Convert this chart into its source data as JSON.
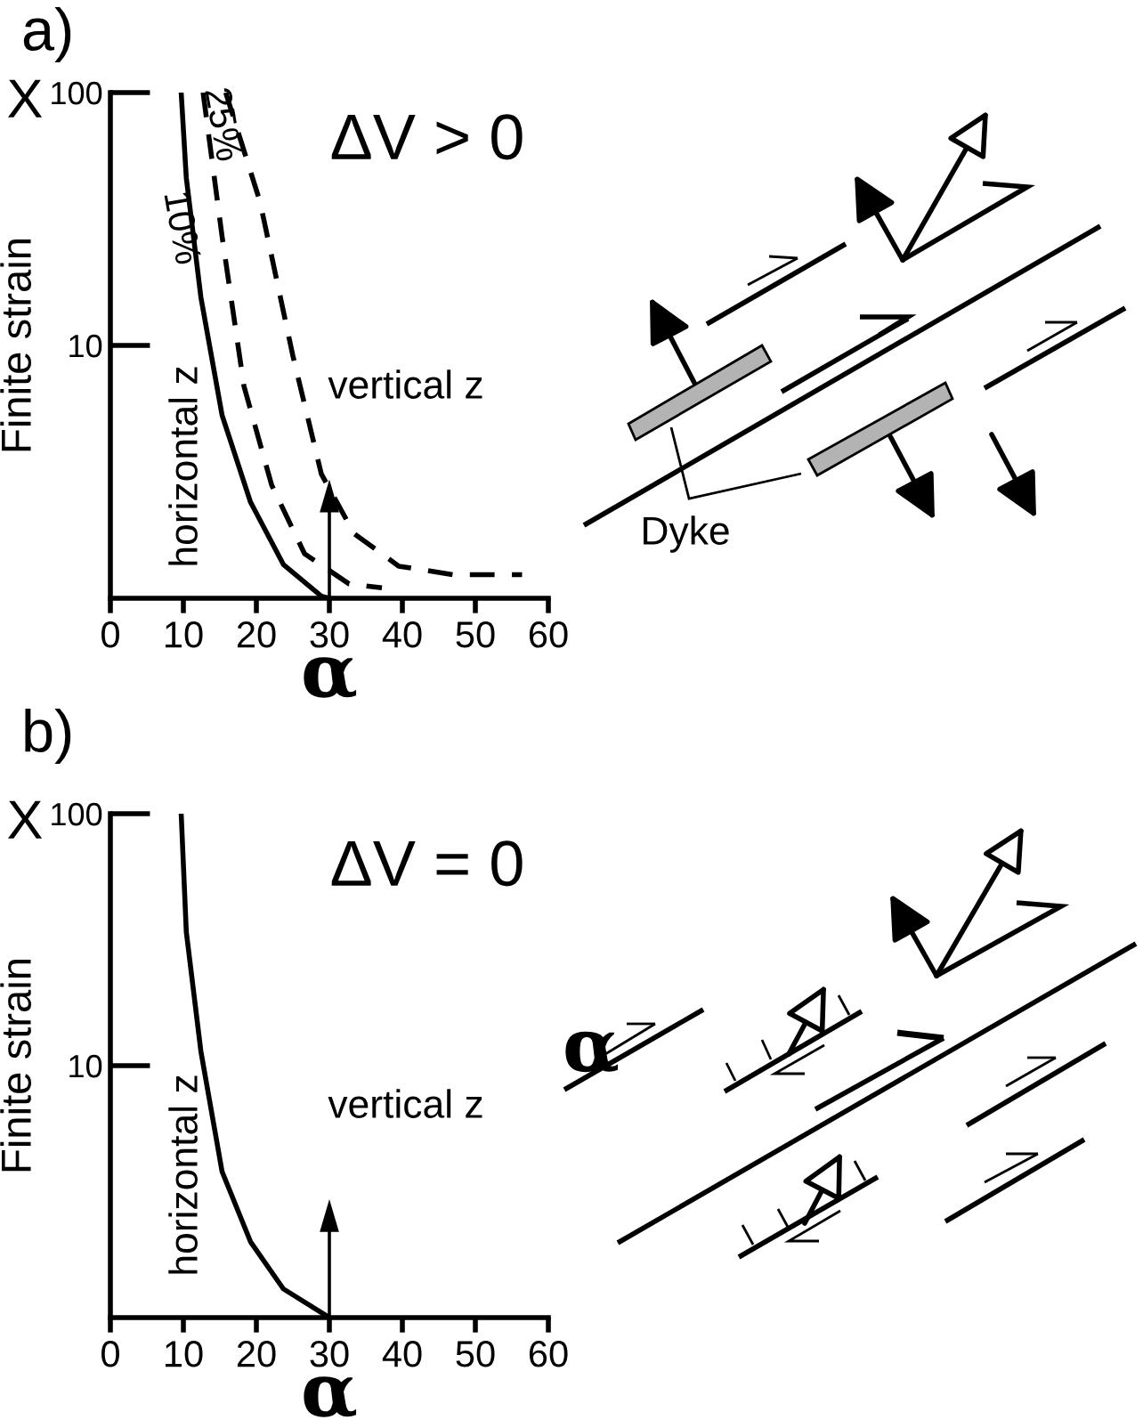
{
  "chart_data": [
    {
      "type": "line",
      "title": "a)",
      "subtitle": "ΔV > 0",
      "xlabel": "α",
      "ylabel": "Finite strain",
      "log": "y",
      "xlim": [
        0,
        60
      ],
      "ylim": [
        1,
        100
      ],
      "xticks": [
        0,
        10,
        20,
        30,
        40,
        50,
        60
      ],
      "yticks": [
        10,
        100
      ],
      "marker": "none",
      "series": [
        {
          "color": "#000000",
          "line_style": "solid",
          "x": [
            9.7,
            10.4,
            12.4,
            15.3,
            19.2,
            23.7,
            28.9,
            30
          ],
          "values": [
            100,
            46,
            15.5,
            5.3,
            2.4,
            1.36,
            1.02,
            1
          ]
        },
        {
          "name": "10%",
          "color": "#000000",
          "line_style": "dashed",
          "x": [
            12.7,
            15.3,
            18.3,
            22.1,
            26.6,
            32.7,
            37.2
          ],
          "values": [
            100,
            27,
            6.9,
            2.8,
            1.5,
            1.14,
            1.1
          ]
        },
        {
          "name": "25%",
          "color": "#000000",
          "line_style": "dashed",
          "x": [
            15.8,
            20.5,
            25.0,
            28.9,
            33.4,
            39.5,
            46.9,
            56.4
          ],
          "values": [
            100,
            37,
            9.1,
            3.1,
            1.8,
            1.34,
            1.24,
            1.24
          ]
        }
      ],
      "ref_lines": [
        {
          "axis": "x",
          "value": 30
        }
      ],
      "annotations": [
        "X",
        "vertical z",
        "horizontal z",
        "Dyke"
      ]
    },
    {
      "type": "line",
      "title": "b)",
      "subtitle": "ΔV = 0",
      "xlabel": "α",
      "ylabel": "Finite strain",
      "log": "y",
      "xlim": [
        0,
        60
      ],
      "ylim": [
        1,
        100
      ],
      "xticks": [
        0,
        10,
        20,
        30,
        40,
        50,
        60
      ],
      "yticks": [
        10,
        100
      ],
      "marker": "none",
      "series": [
        {
          "color": "#000000",
          "line_style": "solid",
          "x": [
            9.7,
            10.4,
            12.4,
            15.3,
            19.2,
            23.7,
            30
          ],
          "values": [
            100,
            34,
            11.4,
            3.8,
            2.0,
            1.3,
            1
          ]
        }
      ],
      "ref_lines": [
        {
          "axis": "x",
          "value": 30
        }
      ],
      "annotations": [
        "X",
        "vertical z",
        "horizontal z",
        "α"
      ]
    }
  ]
}
